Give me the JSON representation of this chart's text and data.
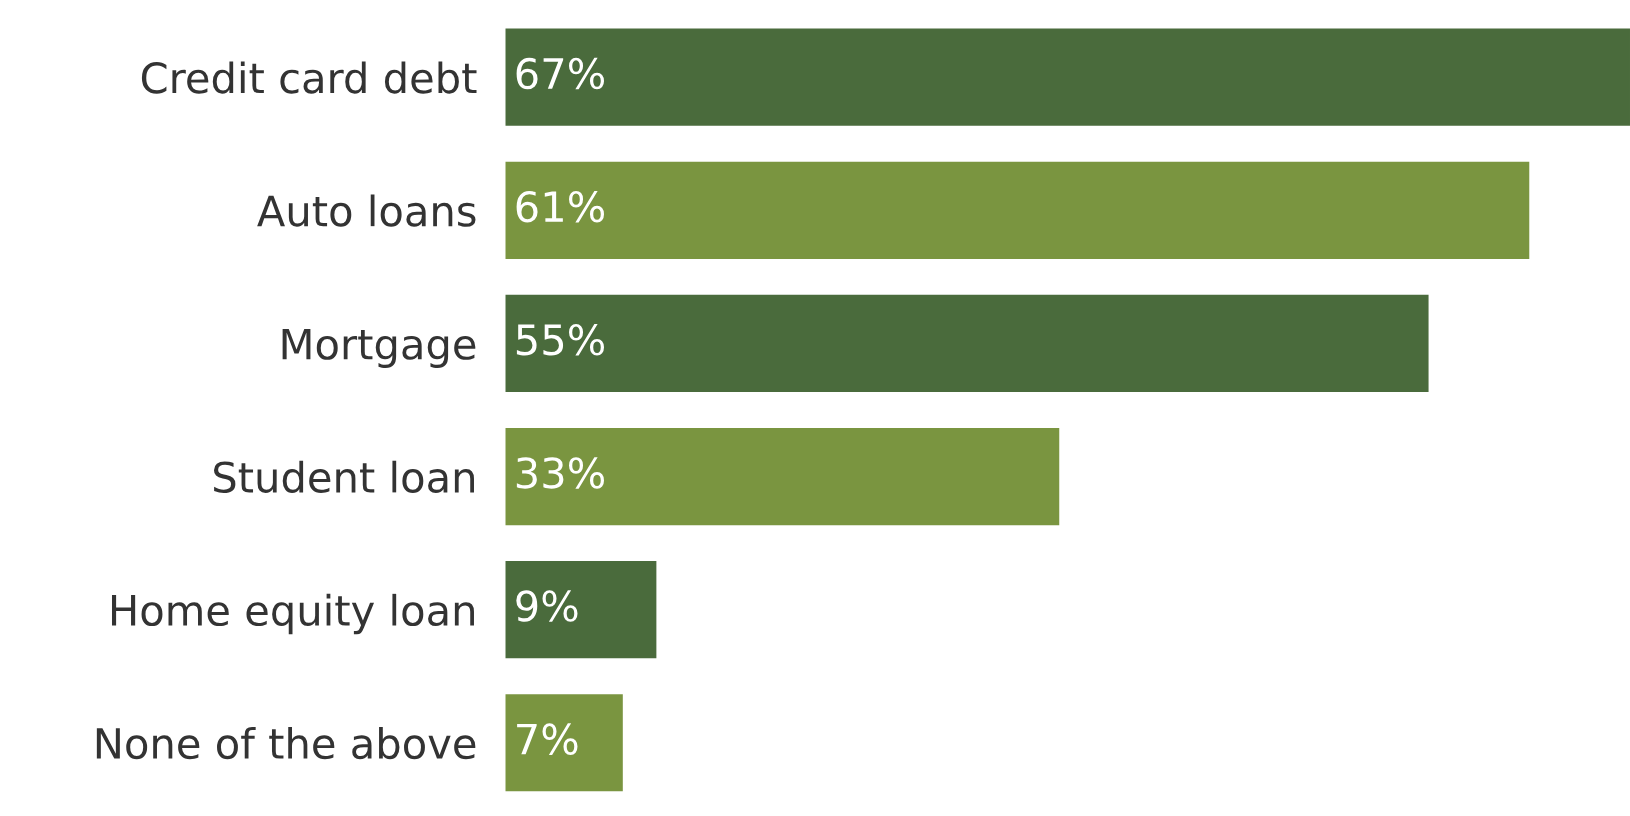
{
  "chart_data": {
    "type": "bar",
    "orientation": "horizontal",
    "categories": [
      "Credit card debt",
      "Auto loans",
      "Mortgage",
      "Student loan",
      "Home equity loan",
      "None of the above"
    ],
    "values": [
      67,
      61,
      55,
      33,
      9,
      7
    ],
    "colors": [
      "#4a6b3c",
      "#7a9540",
      "#4a6b3c",
      "#7a9540",
      "#4a6b3c",
      "#7a9540"
    ],
    "value_labels": [
      "67%",
      "61%",
      "55%",
      "33%",
      "9%",
      "7%"
    ],
    "grid": false,
    "legend": false
  }
}
